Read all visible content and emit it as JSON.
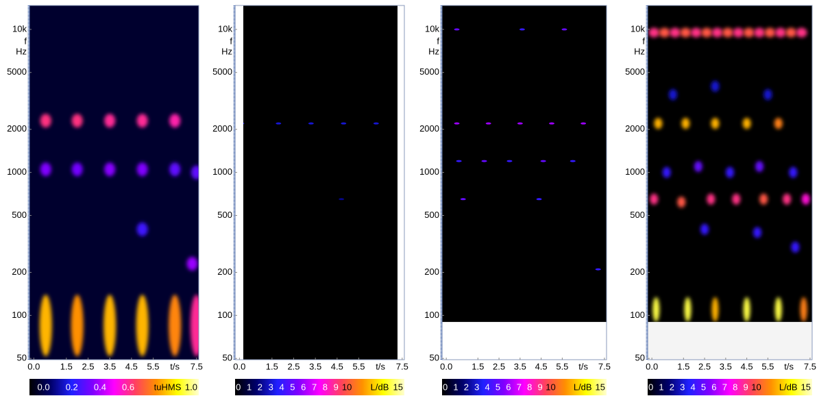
{
  "colormap": [
    "#000000",
    "#00006a",
    "#2020ff",
    "#8000ff",
    "#ff00ff",
    "#ff4060",
    "#ff9000",
    "#ffff00",
    "#ffffd0"
  ],
  "chart_data": [
    {
      "type": "spectrogram",
      "yscale": "log",
      "ylim": [
        49,
        14700
      ],
      "yticks": [
        {
          "value": 10000,
          "label": "10k"
        },
        5000,
        2000,
        1000,
        500,
        200,
        100,
        50
      ],
      "ylabel": [
        "f",
        "Hz"
      ],
      "xlim": [
        -0.2,
        7.6
      ],
      "xticks": [
        {
          "value": 0,
          "label": "0.0"
        },
        1.5,
        2.5,
        3.5,
        4.5,
        5.5,
        7.5
      ],
      "xlabel": "t/s",
      "background": "#00002e",
      "colorbar": {
        "label": "tuHMS",
        "lim": [
          -0.1,
          1.1
        ],
        "ticks": [
          {
            "value": 0,
            "label": "0.0"
          },
          0.2,
          0.4,
          0.6,
          {
            "value": 1,
            "label": "1.0"
          }
        ]
      },
      "cells": [
        [
          0.55,
          2300,
          0.62
        ],
        [
          2.0,
          2300,
          0.62
        ],
        [
          3.5,
          2300,
          0.6
        ],
        [
          5.0,
          2300,
          0.6
        ],
        [
          6.5,
          2300,
          0.58
        ],
        [
          0.55,
          1050,
          0.35
        ],
        [
          2.0,
          1050,
          0.33
        ],
        [
          3.5,
          1050,
          0.36
        ],
        [
          5.0,
          1050,
          0.35
        ],
        [
          6.5,
          1050,
          0.3
        ],
        [
          7.5,
          1000,
          0.3
        ],
        [
          0.55,
          85,
          0.85
        ],
        [
          2.0,
          85,
          0.8
        ],
        [
          3.5,
          85,
          0.85
        ],
        [
          5.0,
          85,
          0.85
        ],
        [
          6.5,
          85,
          0.78
        ],
        [
          7.5,
          85,
          0.6
        ],
        [
          7.3,
          230,
          0.38
        ],
        [
          5.0,
          400,
          0.25
        ]
      ]
    },
    {
      "type": "spectrogram",
      "yscale": "log",
      "ylim": [
        49,
        14700
      ],
      "yticks": [
        {
          "value": 10000,
          "label": "10k"
        },
        5000,
        2000,
        1000,
        500,
        200,
        100,
        50
      ],
      "ylabel": [
        "f",
        "Hz"
      ],
      "xlim": [
        -0.2,
        7.6
      ],
      "xticks": [
        {
          "value": 0,
          "label": "0.0"
        },
        1.5,
        2.5,
        3.5,
        4.5,
        5.5,
        7.5
      ],
      "xlabel": "t/s",
      "background": "#000000",
      "side_margins": true,
      "colorbar": {
        "label": "L/dB",
        "lim": [
          -0.3,
          15.3
        ],
        "ticks": [
          0,
          1,
          2,
          3,
          4,
          5,
          6,
          7,
          8,
          9,
          10,
          15
        ]
      },
      "cells": [
        [
          0.1,
          2200,
          3
        ],
        [
          1.8,
          2200,
          3
        ],
        [
          3.3,
          2200,
          3
        ],
        [
          4.8,
          2200,
          3
        ],
        [
          6.3,
          2200,
          3
        ],
        [
          4.7,
          650,
          2
        ]
      ]
    },
    {
      "type": "spectrogram",
      "yscale": "log",
      "ylim": [
        49,
        14700
      ],
      "yticks": [
        {
          "value": 10000,
          "label": "10k"
        },
        5000,
        2000,
        1000,
        500,
        200,
        100,
        50
      ],
      "ylabel": [
        "f",
        "Hz"
      ],
      "xlim": [
        -0.2,
        7.6
      ],
      "xticks": [
        {
          "value": 0,
          "label": "0.0"
        },
        1.5,
        2.5,
        3.5,
        4.5,
        5.5,
        7.5
      ],
      "xlabel": "t/s",
      "background": "#000000",
      "data_fmin": 90,
      "colorbar": {
        "label": "L/dB",
        "lim": [
          -0.3,
          15.3
        ],
        "ticks": [
          0,
          1,
          2,
          3,
          4,
          5,
          6,
          7,
          8,
          9,
          10,
          15
        ]
      },
      "cells": [
        [
          0.5,
          2200,
          6
        ],
        [
          2.0,
          2200,
          6
        ],
        [
          3.5,
          2200,
          6
        ],
        [
          5.0,
          2200,
          6
        ],
        [
          6.5,
          2200,
          6
        ],
        [
          0.5,
          10000,
          5
        ],
        [
          5.6,
          10000,
          5
        ],
        [
          3.6,
          10000,
          4
        ],
        [
          0.6,
          1200,
          4
        ],
        [
          1.8,
          1200,
          5
        ],
        [
          3.0,
          1200,
          4
        ],
        [
          4.6,
          1200,
          5
        ],
        [
          6.0,
          1200,
          4
        ],
        [
          0.8,
          650,
          5
        ],
        [
          4.4,
          650,
          4
        ],
        [
          7.2,
          210,
          4
        ]
      ]
    },
    {
      "type": "spectrogram",
      "yscale": "log",
      "ylim": [
        49,
        14700
      ],
      "yticks": [
        {
          "value": 10000,
          "label": "10k"
        },
        5000,
        2000,
        1000,
        500,
        200,
        100,
        50
      ],
      "ylabel": [
        "f",
        "Hz"
      ],
      "xlim": [
        -0.2,
        7.6
      ],
      "xticks": [
        {
          "value": 0,
          "label": "0.0"
        },
        1.5,
        2.5,
        3.5,
        4.5,
        5.5,
        7.5
      ],
      "xlabel": "t/s",
      "background": "#000000",
      "data_fmin": 90,
      "colorbar": {
        "label": "L/dB",
        "lim": [
          -0.3,
          15.3
        ],
        "ticks": [
          0,
          1,
          2,
          3,
          4,
          5,
          6,
          7,
          8,
          9,
          10,
          15
        ]
      },
      "cells": [
        [
          0.1,
          9500,
          9
        ],
        [
          0.6,
          9500,
          10
        ],
        [
          1.1,
          9500,
          9
        ],
        [
          1.6,
          9500,
          10
        ],
        [
          2.1,
          9500,
          9
        ],
        [
          2.6,
          9500,
          10
        ],
        [
          3.1,
          9500,
          9
        ],
        [
          3.6,
          9500,
          10
        ],
        [
          4.1,
          9500,
          9
        ],
        [
          4.6,
          9500,
          10
        ],
        [
          5.1,
          9500,
          9
        ],
        [
          5.6,
          9500,
          10
        ],
        [
          6.1,
          9500,
          9
        ],
        [
          6.6,
          9500,
          10
        ],
        [
          7.1,
          9500,
          9
        ],
        [
          0.3,
          2200,
          12
        ],
        [
          1.6,
          2200,
          12
        ],
        [
          3.0,
          2200,
          12
        ],
        [
          4.5,
          2200,
          12
        ],
        [
          6.0,
          2200,
          11
        ],
        [
          0.1,
          650,
          9
        ],
        [
          1.4,
          620,
          10
        ],
        [
          2.8,
          650,
          9
        ],
        [
          4.0,
          650,
          9
        ],
        [
          5.3,
          650,
          10
        ],
        [
          6.4,
          650,
          9
        ],
        [
          7.3,
          650,
          8
        ],
        [
          0.2,
          110,
          14
        ],
        [
          1.7,
          110,
          14
        ],
        [
          3.0,
          110,
          12
        ],
        [
          4.5,
          110,
          14
        ],
        [
          6.0,
          110,
          14
        ],
        [
          7.2,
          110,
          11
        ],
        [
          0.7,
          1000,
          4
        ],
        [
          2.2,
          1100,
          5
        ],
        [
          3.7,
          1000,
          4
        ],
        [
          5.1,
          1100,
          5
        ],
        [
          6.7,
          1000,
          4
        ],
        [
          1.0,
          3500,
          3
        ],
        [
          3.0,
          4000,
          3
        ],
        [
          5.5,
          3500,
          3
        ],
        [
          2.5,
          400,
          4
        ],
        [
          5.0,
          380,
          4
        ],
        [
          6.8,
          300,
          4
        ]
      ]
    }
  ]
}
